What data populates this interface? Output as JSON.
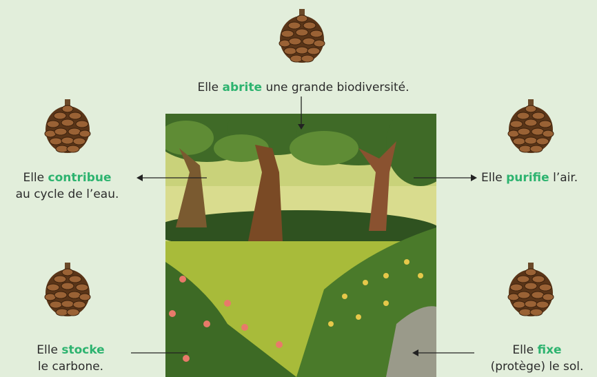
{
  "labels": [
    {
      "before": "Elle",
      "keyword": "abrite",
      "after": "une grande biodiversité."
    },
    {
      "before": "Elle",
      "keyword": "contribue",
      "line2": "au cycle de l’eau."
    },
    {
      "before": "Elle",
      "keyword": "purifie",
      "after": "l’air."
    },
    {
      "before": "Elle",
      "keyword": "stocke",
      "line2": "le carbone."
    },
    {
      "before": "Elle",
      "keyword": "fixe",
      "line2": "(protège) le sol."
    }
  ]
}
